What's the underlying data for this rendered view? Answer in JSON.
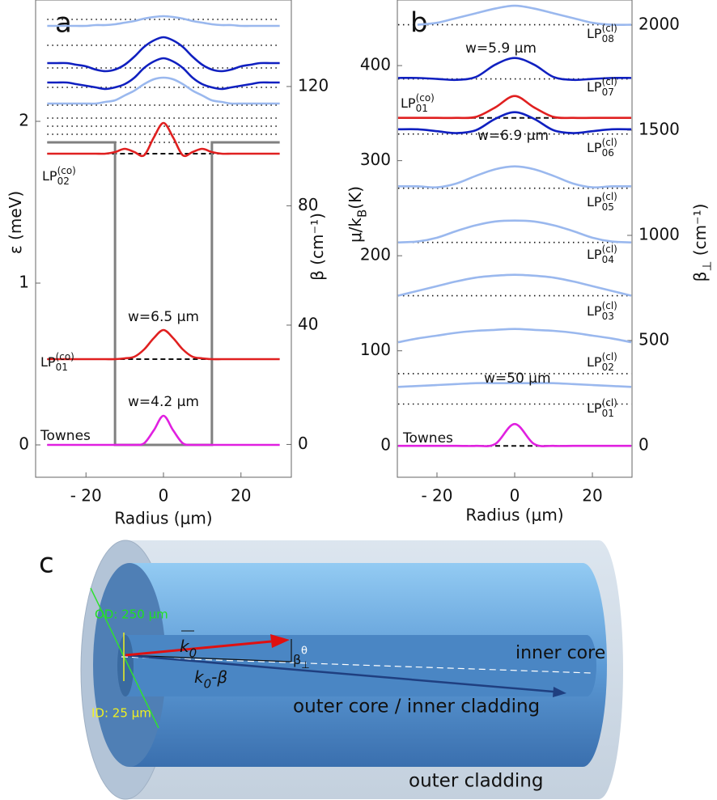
{
  "chart_data": [
    {
      "type": "line",
      "panel_label": "a",
      "xlabel": "Radius (μm)",
      "ylabel": "ε (meV)",
      "y2label": "β (cm⁻¹)",
      "x": [
        -30,
        -27.5,
        -25,
        -22.5,
        -20,
        -17.5,
        -15,
        -12.5,
        -10,
        -7.5,
        -5,
        -2.5,
        0,
        2.5,
        5,
        7.5,
        10,
        12.5,
        15,
        17.5,
        20,
        22.5,
        25,
        27.5,
        30
      ],
      "xlim": [
        -33,
        33
      ],
      "xticks": [
        {
          "value": -20,
          "label": "- 20"
        },
        0,
        20
      ],
      "ylim": [
        -0.2,
        2.75
      ],
      "yticks": [
        0,
        1,
        2
      ],
      "y2lim": [
        -11,
        149
      ],
      "y2ticks": [
        0,
        40,
        80,
        120
      ],
      "series": [
        {
          "color": "#e020e0",
          "values": [
            0,
            0,
            0,
            0,
            0,
            0,
            0,
            0,
            0,
            0,
            0.01,
            0.09,
            0.18,
            0.09,
            0.01,
            0,
            0,
            0,
            0,
            0,
            0,
            0,
            0,
            0,
            0
          ]
        },
        {
          "color": "#e02020",
          "values": [
            0.53,
            0.53,
            0.53,
            0.53,
            0.53,
            0.53,
            0.53,
            0.53,
            0.535,
            0.545,
            0.59,
            0.66,
            0.71,
            0.66,
            0.59,
            0.545,
            0.535,
            0.53,
            0.53,
            0.53,
            0.53,
            0.53,
            0.53,
            0.53,
            0.53
          ]
        },
        {
          "color": "#e02020",
          "values": [
            1.8,
            1.8,
            1.8,
            1.8,
            1.8,
            1.8,
            1.8,
            1.81,
            1.83,
            1.81,
            1.79,
            1.9,
            1.99,
            1.9,
            1.79,
            1.81,
            1.83,
            1.81,
            1.8,
            1.8,
            1.8,
            1.8,
            1.8,
            1.8,
            1.8
          ]
        },
        {
          "color": "#9ab8ee",
          "values": [
            2.11,
            2.11,
            2.11,
            2.11,
            2.11,
            2.11,
            2.12,
            2.13,
            2.16,
            2.19,
            2.23,
            2.26,
            2.27,
            2.26,
            2.23,
            2.19,
            2.16,
            2.13,
            2.12,
            2.11,
            2.11,
            2.11,
            2.11,
            2.11,
            2.11
          ]
        },
        {
          "color": "#1020c0",
          "values": [
            2.24,
            2.24,
            2.24,
            2.23,
            2.22,
            2.21,
            2.2,
            2.21,
            2.23,
            2.27,
            2.33,
            2.37,
            2.39,
            2.37,
            2.33,
            2.27,
            2.23,
            2.21,
            2.2,
            2.21,
            2.22,
            2.23,
            2.24,
            2.24,
            2.24
          ]
        },
        {
          "color": "#1020c0",
          "values": [
            2.36,
            2.36,
            2.36,
            2.35,
            2.34,
            2.32,
            2.31,
            2.32,
            2.35,
            2.4,
            2.46,
            2.5,
            2.52,
            2.5,
            2.46,
            2.4,
            2.35,
            2.32,
            2.31,
            2.32,
            2.34,
            2.35,
            2.36,
            2.36,
            2.36
          ]
        },
        {
          "color": "#9ab8ee",
          "values": [
            2.59,
            2.59,
            2.59,
            2.59,
            2.59,
            2.595,
            2.595,
            2.6,
            2.61,
            2.62,
            2.635,
            2.645,
            2.65,
            2.645,
            2.635,
            2.62,
            2.61,
            2.6,
            2.595,
            2.595,
            2.59,
            2.59,
            2.59,
            2.59,
            2.59
          ]
        }
      ],
      "dashed_levels": [
        0,
        0.53,
        1.8
      ],
      "dotted_levels": [
        2.63,
        2.47,
        2.33,
        2.21,
        2.1,
        2.02,
        1.97,
        1.92,
        1.87
      ],
      "potential": {
        "color": "#808080",
        "x": [
          -30,
          -12.5,
          -12.5,
          12.5,
          12.5,
          30
        ],
        "values": [
          1.87,
          1.87,
          0,
          0,
          1.87,
          1.87
        ]
      },
      "annotations": [
        "w=6.5 μm",
        "w=4.2 μm",
        "Townes",
        {
          "base": "LP",
          "sub": "01",
          "sup": "(co)"
        },
        {
          "base": "LP",
          "sub": "02",
          "sup": "(co)"
        }
      ]
    },
    {
      "type": "line",
      "panel_label": "b",
      "xlabel": "Radius (μm)",
      "ylabel": {
        "base": "μ/k",
        "sub": "B",
        "after": "(K)"
      },
      "y2label": {
        "base": "β",
        "sub": "⊥",
        "after": " (cm⁻¹)"
      },
      "x": [
        -30,
        -25,
        -20,
        -15,
        -10,
        -5,
        0,
        5,
        10,
        15,
        20,
        25,
        30
      ],
      "xlim": [
        -30.2,
        30.2
      ],
      "xticks": [
        {
          "value": -20,
          "label": "- 20"
        },
        0,
        20
      ],
      "ylim": [
        -33,
        469
      ],
      "yticks": [
        0,
        100,
        200,
        300,
        400
      ],
      "y2lim": [
        -150,
        2119
      ],
      "y2ticks": [
        0,
        500,
        1000,
        1500,
        2000
      ],
      "series": [
        {
          "color": "#e020e0",
          "values": [
            0,
            0,
            0,
            0,
            0,
            2,
            23,
            2,
            0,
            0,
            0,
            0,
            0
          ]
        },
        {
          "color": "#9ab8ee",
          "values": [
            62,
            63,
            64,
            65,
            66,
            66,
            66,
            66,
            66,
            65,
            64,
            63,
            62
          ]
        },
        {
          "color": "#9ab8ee",
          "values": [
            109,
            113,
            116,
            119,
            121,
            122,
            123,
            122,
            121,
            119,
            116,
            113,
            109
          ]
        },
        {
          "color": "#9ab8ee",
          "values": [
            158,
            163,
            168,
            173,
            177,
            179,
            180,
            179,
            177,
            173,
            168,
            163,
            158
          ]
        },
        {
          "color": "#9ab8ee",
          "values": [
            214,
            215,
            219,
            226,
            232,
            236,
            237,
            236,
            232,
            226,
            219,
            215,
            214
          ]
        },
        {
          "color": "#9ab8ee",
          "values": [
            273,
            273,
            272,
            276,
            284,
            291,
            294,
            291,
            284,
            276,
            272,
            273,
            273
          ]
        },
        {
          "color": "#1020c0",
          "values": [
            333,
            333,
            331,
            329,
            332,
            344,
            351,
            344,
            332,
            329,
            331,
            333,
            333
          ]
        },
        {
          "color": "#e02020",
          "values": [
            345,
            345,
            345,
            345,
            346,
            356,
            368,
            356,
            346,
            345,
            345,
            345,
            345
          ]
        },
        {
          "color": "#1020c0",
          "values": [
            387,
            387,
            386,
            385,
            388,
            401,
            408,
            401,
            388,
            385,
            386,
            387,
            387
          ]
        },
        {
          "color": "#9ab8ee",
          "values": [
            null,
            443,
            445,
            450,
            455,
            460,
            463,
            460,
            455,
            450,
            445,
            443,
            443
          ]
        }
      ],
      "dashed_levels": [
        0,
        345
      ],
      "dotted_levels": [
        44,
        76,
        158,
        214,
        271,
        328,
        386,
        443
      ],
      "annotations": [
        "w=5.9 μm",
        "w=6.9 μm",
        "w=50 μm",
        "Townes",
        {
          "base": "LP",
          "sub": "01",
          "sup": "(co)"
        },
        {
          "base": "LP",
          "sub": "08",
          "sup": "(cl)"
        },
        {
          "base": "LP",
          "sub": "07",
          "sup": "(cl)"
        },
        {
          "base": "LP",
          "sub": "06",
          "sup": "(cl)"
        },
        {
          "base": "LP",
          "sub": "05",
          "sup": "(cl)"
        },
        {
          "base": "LP",
          "sub": "04",
          "sup": "(cl)"
        },
        {
          "base": "LP",
          "sub": "03",
          "sup": "(cl)"
        },
        {
          "base": "LP",
          "sub": "02",
          "sup": "(cl)"
        },
        {
          "base": "LP",
          "sub": "01",
          "sup": "(cl)"
        }
      ]
    }
  ],
  "diagram": {
    "panel_label": "c",
    "od_label": "OD: 250 μm",
    "id_label": "ID: 25 μm",
    "k0": {
      "base": "k",
      "sub": "0"
    },
    "theta": "θ",
    "beta_perp": {
      "base": "β",
      "sub": "⊥"
    },
    "k0_minus_beta": {
      "base": "k",
      "sub": "0",
      "after": "-β"
    },
    "inner_core": "inner core",
    "outer_core": "outer core / inner cladding",
    "outer_cladding": "outer cladding"
  }
}
